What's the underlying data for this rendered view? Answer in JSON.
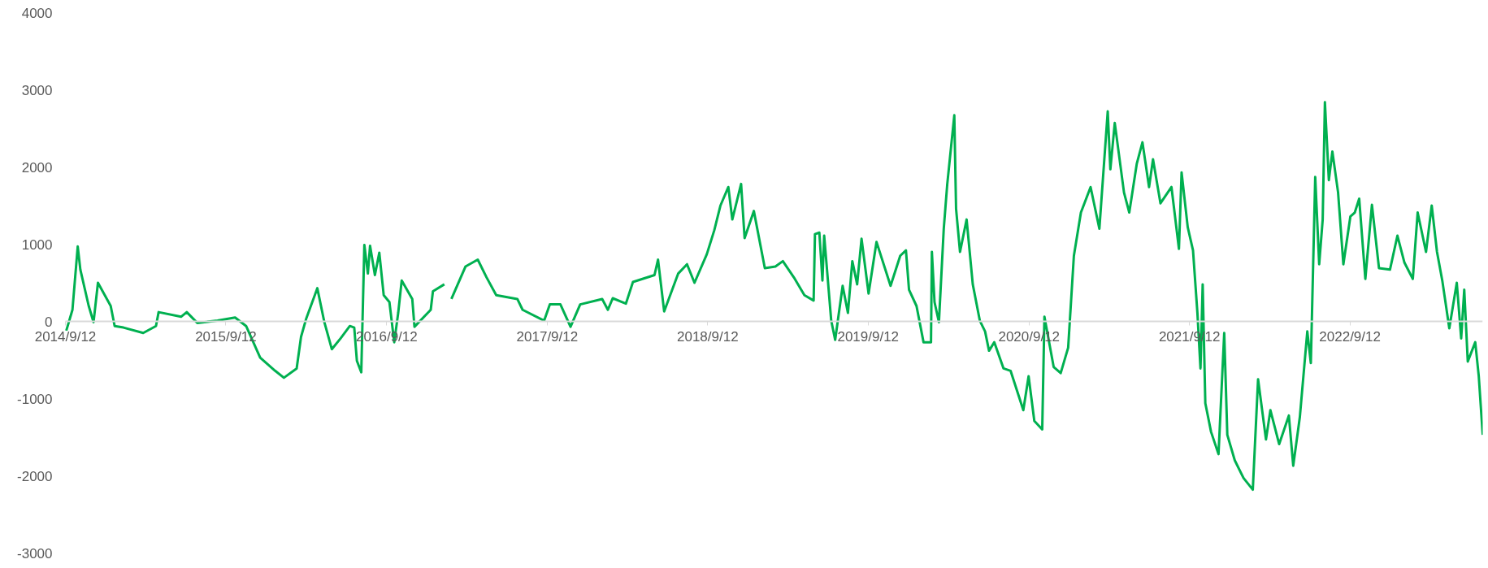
{
  "chart_data": {
    "type": "line",
    "grid": false,
    "marker": "none",
    "line_style": "solid",
    "xlim": [
      "2014-09-12",
      "2023-07-11"
    ],
    "xticks": [
      {
        "value": "2014-09-12",
        "label": "2014/9/12"
      },
      {
        "value": "2015-09-12",
        "label": "2015/9/12"
      },
      {
        "value": "2016-09-12",
        "label": "2016/9/12"
      },
      {
        "value": "2017-09-12",
        "label": "2017/9/12"
      },
      {
        "value": "2018-09-12",
        "label": "2018/9/12"
      },
      {
        "value": "2019-09-12",
        "label": "2019/9/12"
      },
      {
        "value": "2020-09-12",
        "label": "2020/9/12"
      },
      {
        "value": "2021-09-12",
        "label": "2021/9/12"
      },
      {
        "value": "2022-09-12",
        "label": "2022/9/12"
      }
    ],
    "ylim": [
      -3000,
      4000
    ],
    "yticks": [
      -3000,
      -2000,
      -1000,
      0,
      1000,
      2000,
      3000,
      4000
    ],
    "series": [
      {
        "color": "#00b050",
        "x": [
          "2014-09-14",
          "2014-09-28",
          "2014-10-10",
          "2014-10-16",
          "2014-11-04",
          "2014-11-15",
          "2014-11-25",
          "2014-12-24",
          "2015-01-02",
          "2015-01-22",
          "2015-03-08",
          "2015-04-06",
          "2015-04-12",
          "2015-06-02",
          "2015-06-15",
          "2015-07-09",
          "2015-08-24",
          "2015-10-03",
          "2015-10-28",
          "2015-11-29",
          "2016-01-02",
          "2016-01-22",
          "2016-02-20",
          "2016-03-01",
          "2016-03-13",
          "2016-04-07",
          "2016-04-23",
          "2016-05-10",
          "2016-05-30",
          "2016-06-20",
          "2016-06-30",
          "2016-07-06",
          "2016-07-16",
          "2016-07-23",
          "2016-07-31",
          "2016-08-05",
          "2016-08-16",
          "2016-08-26",
          "2016-09-05",
          "2016-09-18",
          "2016-09-29",
          "2016-10-08",
          "2016-10-16",
          "2016-11-09",
          "2016-11-14",
          "2016-12-21",
          "2016-12-26",
          "2017-01-21",
          "2017-01-28",
          "2017-02-06",
          "2017-03-10",
          "2017-04-07",
          "2017-04-27",
          "2017-05-19",
          "2017-07-06",
          "2017-07-18",
          "2017-09-05",
          "2017-09-18",
          "2017-10-12",
          "2017-11-04",
          "2017-11-26",
          "2018-01-15",
          "2018-01-28",
          "2018-02-08",
          "2018-03-10",
          "2018-03-26",
          "2018-05-14",
          "2018-05-22",
          "2018-06-05",
          "2018-07-07",
          "2018-07-27",
          "2018-08-13",
          "2018-09-10",
          "2018-09-27",
          "2018-10-11",
          "2018-10-29",
          "2018-11-07",
          "2018-11-27",
          "2018-12-05",
          "2018-12-26",
          "2019-01-20",
          "2019-02-13",
          "2019-03-02",
          "2019-03-27",
          "2019-04-20",
          "2019-05-11",
          "2019-05-14",
          "2019-05-24",
          "2019-05-31",
          "2019-06-04",
          "2019-06-20",
          "2019-06-29",
          "2019-07-16",
          "2019-07-28",
          "2019-08-07",
          "2019-08-18",
          "2019-08-28",
          "2019-09-13",
          "2019-10-01",
          "2019-11-02",
          "2019-11-24",
          "2019-12-07",
          "2019-12-14",
          "2019-12-31",
          "2020-01-16",
          "2020-02-02",
          "2020-02-04",
          "2020-02-10",
          "2020-02-20",
          "2020-03-02",
          "2020-03-10",
          "2020-03-26",
          "2020-03-30",
          "2020-04-08",
          "2020-04-23",
          "2020-05-07",
          "2020-05-23",
          "2020-06-04",
          "2020-06-13",
          "2020-06-25",
          "2020-07-16",
          "2020-08-01",
          "2020-08-30",
          "2020-09-11",
          "2020-09-24",
          "2020-10-12",
          "2020-10-17",
          "2020-11-07",
          "2020-11-23",
          "2020-12-10",
          "2020-12-23",
          "2021-01-08",
          "2021-01-30",
          "2021-02-19",
          "2021-03-10",
          "2021-03-16",
          "2021-03-26",
          "2021-04-16",
          "2021-04-28",
          "2021-05-15",
          "2021-05-28",
          "2021-06-12",
          "2021-06-21",
          "2021-07-08",
          "2021-08-02",
          "2021-08-19",
          "2021-08-25",
          "2021-09-08",
          "2021-09-20",
          "2021-09-30",
          "2021-10-07",
          "2021-10-12",
          "2021-10-18",
          "2021-10-31",
          "2021-11-17",
          "2021-11-30",
          "2021-12-07",
          "2021-12-24",
          "2022-01-13",
          "2022-02-03",
          "2022-02-15",
          "2022-03-05",
          "2022-03-15",
          "2022-04-04",
          "2022-04-26",
          "2022-05-06",
          "2022-05-21",
          "2022-06-07",
          "2022-06-15",
          "2022-06-25",
          "2022-07-04",
          "2022-07-12",
          "2022-07-17",
          "2022-07-26",
          "2022-08-03",
          "2022-08-16",
          "2022-08-28",
          "2022-09-13",
          "2022-09-23",
          "2022-10-03",
          "2022-10-17",
          "2022-11-01",
          "2022-11-17",
          "2022-12-12",
          "2022-12-29",
          "2023-01-14",
          "2023-02-02",
          "2023-02-13",
          "2023-03-04",
          "2023-03-17",
          "2023-03-29",
          "2023-04-10",
          "2023-04-26",
          "2023-05-13",
          "2023-05-23",
          "2023-05-30",
          "2023-06-07",
          "2023-06-24",
          "2023-07-02",
          "2023-07-11"
        ],
        "values": [
          -120,
          150,
          970,
          670,
          200,
          -10,
          500,
          200,
          -60,
          -80,
          -150,
          -60,
          120,
          60,
          120,
          -20,
          10,
          50,
          -60,
          -470,
          -640,
          -730,
          -610,
          -200,
          40,
          430,
          -10,
          -360,
          -220,
          -60,
          -80,
          -510,
          -660,
          990,
          620,
          980,
          600,
          890,
          340,
          250,
          -270,
          110,
          530,
          290,
          -70,
          150,
          390,
          480,
          null,
          290,
          710,
          800,
          570,
          340,
          290,
          150,
          10,
          220,
          220,
          -70,
          220,
          290,
          150,
          300,
          230,
          510,
          600,
          800,
          130,
          620,
          740,
          500,
          870,
          1180,
          1500,
          1740,
          1320,
          1780,
          1080,
          1430,
          690,
          710,
          780,
          570,
          340,
          270,
          1130,
          1150,
          530,
          1110,
          10,
          -240,
          460,
          110,
          780,
          480,
          1070,
          360,
          1030,
          460,
          850,
          920,
          410,
          200,
          -270,
          -270,
          900,
          250,
          -10,
          1200,
          1780,
          2670,
          1460,
          900,
          1320,
          480,
          10,
          -130,
          -380,
          -270,
          -610,
          -640,
          -1150,
          -710,
          -1290,
          -1400,
          60,
          -590,
          -670,
          -340,
          850,
          1410,
          1740,
          1200,
          2720,
          1970,
          2570,
          1670,
          1410,
          2040,
          2320,
          1740,
          2100,
          1530,
          1740,
          940,
          1930,
          1220,
          920,
          110,
          -610,
          480,
          -1060,
          -1430,
          -1720,
          -150,
          -1470,
          -1800,
          -2030,
          -2180,
          -750,
          -1530,
          -1150,
          -1590,
          -1220,
          -1870,
          -1240,
          -130,
          -540,
          1870,
          740,
          1320,
          2840,
          1830,
          2200,
          1670,
          740,
          1360,
          1410,
          1590,
          550,
          1510,
          690,
          670,
          1110,
          760,
          550,
          1410,
          900,
          1500,
          900,
          530,
          -90,
          500,
          -220,
          410,
          -520,
          -270,
          -710,
          -1470
        ]
      }
    ]
  }
}
